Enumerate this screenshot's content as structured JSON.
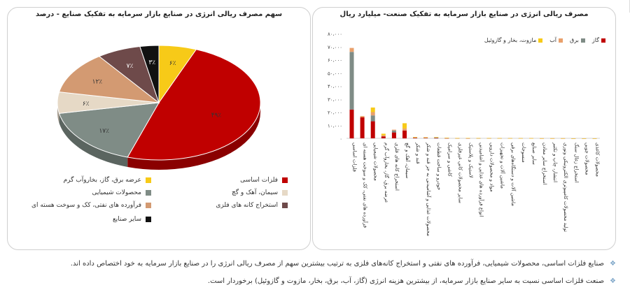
{
  "colors": {
    "metal": "#c00000",
    "chem": "#7f8c86",
    "cement": "#e6d9c6",
    "oil": "#d39a72",
    "mining": "#6e4a4a",
    "other": "#111111",
    "elec": "#f7ca18",
    "gas": "#c00000",
    "power": "#7f8c86",
    "water": "#e9a06b",
    "fuel": "#f7ca18"
  },
  "notes": [
    "صنایع فلزات اساسی، محصولات شیمیایی، فرآورده های نفتی و استخراج کانه‌های فلزی به ترتیب بیشترین سهم از مصرف ریالی انرژی را در صنایع بازار سرمایه به خود اختصاص داده اند.",
    "صنعت فلزات اساسی نسبت به سایر صنایع بازار سرمایه، از بیشترین هزینه انرژی (گاز، آب، برق، بخار، مازوت و گازوئیل) برخوردار است."
  ],
  "chart_data": [
    {
      "type": "pie",
      "title": "سهم مصرف ریالی انرژی در صنایع  بازار سرمایه به تفکیک صنایع - درصد",
      "slices": [
        {
          "name": "فلزات اساسی",
          "value": 49,
          "label": "۴۹٪",
          "color": "#c00000"
        },
        {
          "name": "محصولات شیمیایی",
          "value": 17,
          "label": "۱۷٪",
          "color": "#7f8c86"
        },
        {
          "name": "سیمان، آهک و گچ",
          "value": 6,
          "label": "۶٪",
          "color": "#e6d9c6"
        },
        {
          "name": "فرآورده های نفتی، کک و سوخت هسته ای",
          "value": 12,
          "label": "۱۲٪",
          "color": "#d39a72"
        },
        {
          "name": "استخراج کانه های فلزی",
          "value": 7,
          "label": "۷٪",
          "color": "#6e4a4a"
        },
        {
          "name": "سایر صنایع",
          "value": 3,
          "label": "۳٪",
          "color": "#111111"
        },
        {
          "name": "عرضه برق، گاز، بخاروآب گرم",
          "value": 6,
          "label": "۶٪",
          "color": "#f7ca18"
        }
      ]
    },
    {
      "type": "bar",
      "stacked": true,
      "title": "مصرف ریالی انرژی در صنایع بازار سرمایه به تفکیک صنعت- میلیارد ریال",
      "ylim": [
        0,
        80000
      ],
      "yticks": [
        "۰",
        "۱۰،۰۰۰",
        "۲۰،۰۰۰",
        "۳۰،۰۰۰",
        "۴۰،۰۰۰",
        "۵۰،۰۰۰",
        "۶۰،۰۰۰",
        "۷۰،۰۰۰",
        "۸۰،۰۰۰"
      ],
      "ytick_values": [
        0,
        10000,
        20000,
        30000,
        40000,
        50000,
        60000,
        70000,
        80000
      ],
      "categories": [
        "فلزات اساسی",
        "فرآورده های نفتی، کک و سوخت هسته ای",
        "محصولات شیمیایی",
        "عرضه برق، گاز، بخاروآب گرم",
        "استخراج کانه های فلزی",
        "سیمان، آهک و گچ",
        "قند و شکر",
        "محصولات غذایی و آشامیدنی به جز قند و شکر",
        "خودرو و ساخت قطعات",
        "کاشی و سرامیک",
        "سایر محصولات کانی غیرفلزی",
        "لاستیک و پلاستیک",
        "انواع فرآورده های غذایی و آشامیدنی",
        "مواد و محصولات دارویی",
        "ماشین آلات و تجهیزات",
        "ماشین آلات و دستگاه‌های برقی",
        "منسوجات",
        "سایر صنایع",
        "استخراج سایر معادن",
        "انتشار، چاپ و تکثیر",
        "تولید محصولات کامپیوتری الکترونیکی ونوری",
        "استخراج زغال سنگ",
        "محصولات چوبی",
        "محصولات کاغذی"
      ],
      "series": [
        {
          "name": "گاز",
          "color": "#c00000",
          "values": [
            22000,
            16000,
            13000,
            1500,
            4500,
            6000,
            400,
            300,
            200,
            150,
            100,
            100,
            80,
            60,
            50,
            40,
            30,
            30,
            20,
            10,
            10,
            5,
            5,
            5
          ]
        },
        {
          "name": "برق",
          "color": "#7f8c86",
          "values": [
            44000,
            0,
            4500,
            0,
            1500,
            0,
            300,
            300,
            600,
            200,
            100,
            150,
            100,
            100,
            80,
            60,
            50,
            40,
            30,
            20,
            20,
            10,
            10,
            10
          ]
        },
        {
          "name": "آب",
          "color": "#e9a06b",
          "values": [
            3000,
            1000,
            2500,
            800,
            600,
            1500,
            100,
            100,
            50,
            30,
            20,
            20,
            20,
            20,
            10,
            10,
            10,
            10,
            5,
            5,
            5,
            5,
            5,
            5
          ]
        },
        {
          "name": "مازوت، بخار و گازوئیل",
          "color": "#f7ca18",
          "values": [
            0,
            0,
            3500,
            1200,
            0,
            4000,
            200,
            100,
            50,
            20,
            20,
            10,
            10,
            10,
            10,
            10,
            10,
            10,
            5,
            5,
            5,
            5,
            5,
            5
          ]
        }
      ]
    }
  ]
}
